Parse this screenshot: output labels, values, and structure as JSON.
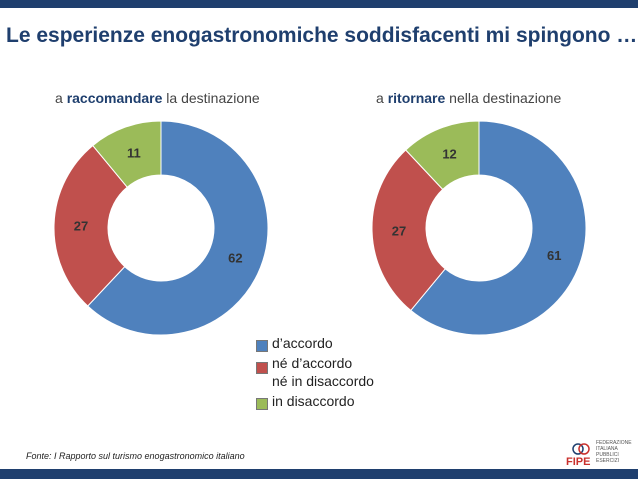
{
  "title": "Le esperienze enogastronomiche soddisfacenti mi spingono …",
  "chart_data": [
    {
      "type": "pie",
      "subtitle_prefix": "a ",
      "subtitle_bold": "raccomandare",
      "subtitle_suffix": "  la destinazione",
      "categories": [
        "d’accordo",
        "né d’accordo\nné in disaccordo",
        "in disaccordo"
      ],
      "values": [
        62,
        27,
        11
      ]
    },
    {
      "type": "pie",
      "subtitle_prefix": "a ",
      "subtitle_bold": "ritornare",
      "subtitle_suffix": " nella destinazione",
      "categories": [
        "d’accordo",
        "né d’accordo\nné in disaccordo",
        "in disaccordo"
      ],
      "values": [
        61,
        27,
        12
      ]
    }
  ],
  "legend": [
    {
      "label": "d’accordo",
      "color": "#4f81bd"
    },
    {
      "label": "né d’accordo\nné in disaccordo",
      "color": "#c0504d"
    },
    {
      "label": "in disaccordo",
      "color": "#9bbb59"
    }
  ],
  "colors": [
    "#4f81bd",
    "#c0504d",
    "#9bbb59"
  ],
  "source": "Fonte: I Rapporto sul turismo enogastronomico italiano",
  "logo": {
    "mark": "FIPE",
    "text_lines": [
      "Federazione",
      "Italiana",
      "Pubblici",
      "Esercizi"
    ]
  }
}
